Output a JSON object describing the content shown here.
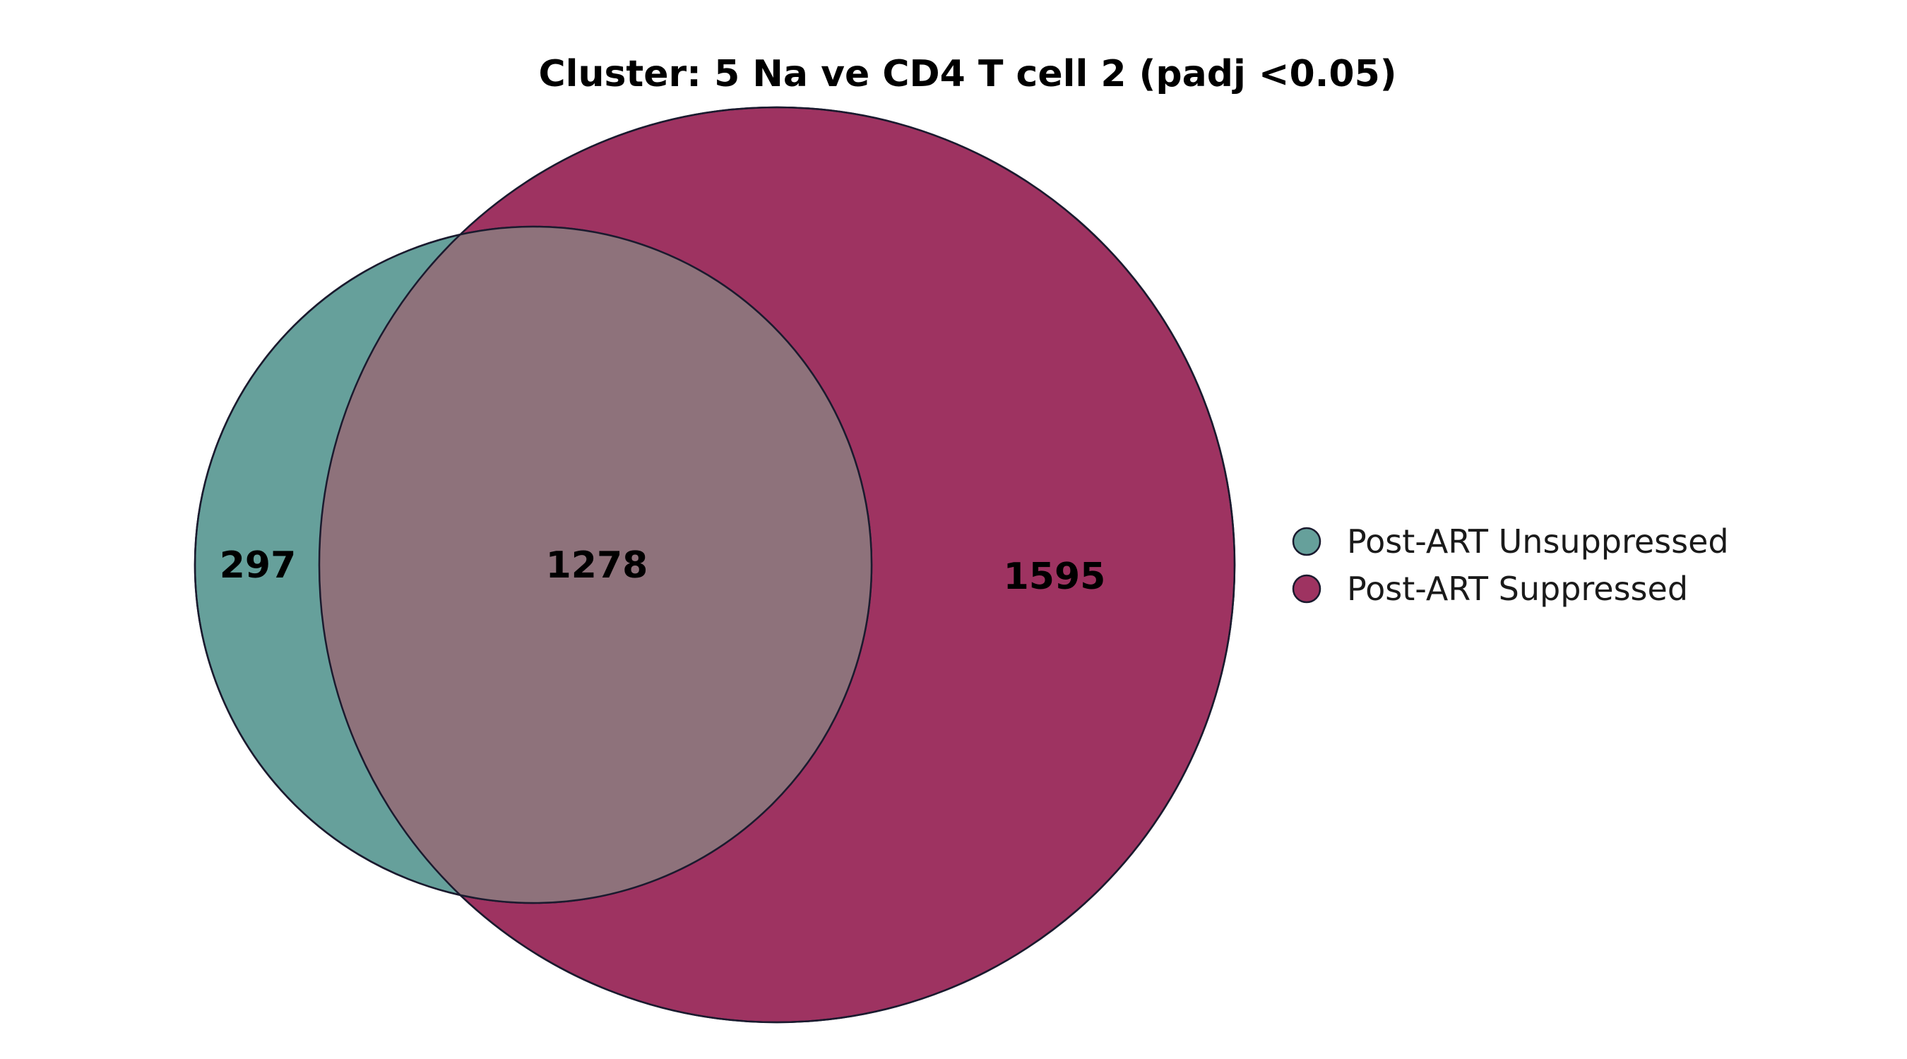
{
  "title": "Cluster: 5 Na ve CD4 T cell 2  (padj <0.05)",
  "sets": [
    {
      "name": "Post-ART Unsuppressed",
      "color": "#66a09b",
      "exclusive_count": "297"
    },
    {
      "name": "Post-ART Suppressed",
      "color": "#9e3361",
      "exclusive_count": "1595"
    }
  ],
  "intersection": {
    "count": "1278",
    "color": "#8e727b"
  },
  "chart_data": {
    "type": "venn",
    "title": "Cluster: 5 Na ve CD4 T cell 2  (padj <0.05)",
    "sets": [
      "Post-ART Unsuppressed",
      "Post-ART Suppressed"
    ],
    "regions": [
      {
        "sets": [
          "Post-ART Unsuppressed"
        ],
        "value": 297
      },
      {
        "sets": [
          "Post-ART Unsuppressed",
          "Post-ART Suppressed"
        ],
        "value": 1278
      },
      {
        "sets": [
          "Post-ART Suppressed"
        ],
        "value": 1595
      }
    ],
    "legend_position": "right"
  }
}
